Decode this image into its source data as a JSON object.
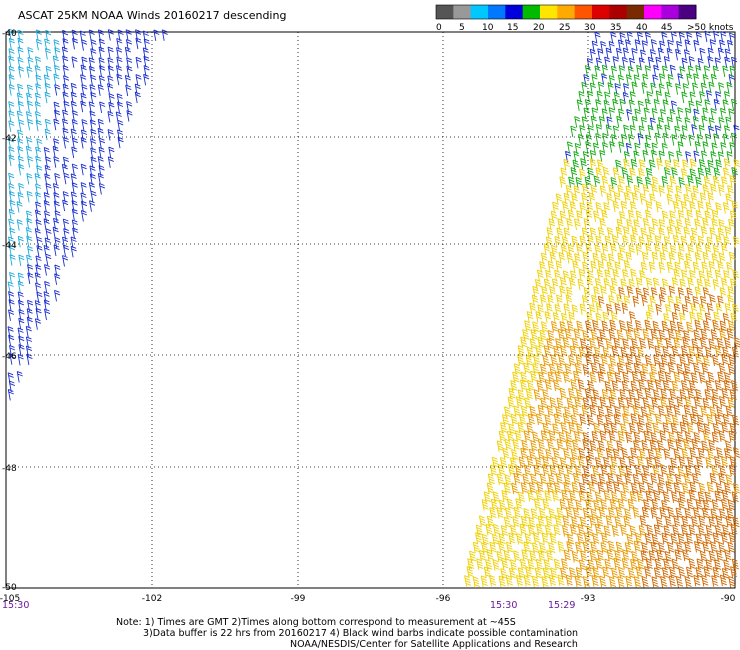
{
  "title": "ASCAT 25KM NOAA Winds 20160217 descending",
  "legend": {
    "labels": [
      "0",
      "5",
      "10",
      "15",
      "20",
      "25",
      "30",
      "35",
      "40",
      "45",
      ">50 knots"
    ],
    "colors": [
      "#555555",
      "#999999",
      "#00c8ff",
      "#0078ff",
      "#0000dd",
      "#00bb00",
      "#ffe600",
      "#ffaa00",
      "#ff5500",
      "#dd0000",
      "#aa0000",
      "#7a2a00",
      "#ff00ff",
      "#aa00dd",
      "#4b0082"
    ]
  },
  "lat_labels": [
    "-40",
    "-42",
    "-44",
    "-46",
    "-48",
    "-50"
  ],
  "lon_labels": [
    "-105",
    "-102",
    "-99",
    "-96",
    "-93",
    "-90"
  ],
  "time_labels": [
    "15:30",
    "15:30",
    "15:29"
  ],
  "notes": [
    "Note: 1) Times are GMT 2)Times along bottom correspond to measurement at ~45S",
    "3)Data buffer is 22 hrs from 20160217 4) Black wind barbs indicate possible contamination",
    "NOAA/NESDIS/Center for Satellite Applications and Research"
  ],
  "barb_colors": {
    "cyan": "#22aadd",
    "blue": "#1a2fd0",
    "green": "#11aa11",
    "yellow": "#f0d000",
    "orange": "#e89a00",
    "dark_orange": "#d06a00"
  }
}
